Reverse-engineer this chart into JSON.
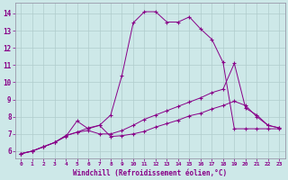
{
  "bg_color": "#cde8e8",
  "line_color": "#880088",
  "xlabel": "Windchill (Refroidissement éolien,°C)",
  "xlim": [
    -0.5,
    23.5
  ],
  "ylim": [
    5.6,
    14.6
  ],
  "yticks": [
    6,
    7,
    8,
    9,
    10,
    11,
    12,
    13,
    14
  ],
  "xticks": [
    0,
    1,
    2,
    3,
    4,
    5,
    6,
    7,
    8,
    9,
    10,
    11,
    12,
    13,
    14,
    15,
    16,
    17,
    18,
    19,
    20,
    21,
    22,
    23
  ],
  "curve_top_x": [
    0,
    1,
    2,
    3,
    4,
    5,
    6,
    7,
    8,
    9,
    10,
    11,
    12,
    13,
    14,
    15,
    16,
    17,
    18,
    19,
    20,
    21,
    22,
    23
  ],
  "curve_top_y": [
    5.85,
    6.0,
    6.25,
    6.5,
    6.9,
    7.1,
    7.35,
    7.5,
    8.1,
    10.4,
    13.45,
    14.1,
    14.1,
    13.5,
    13.5,
    13.8,
    13.1,
    12.5,
    11.15,
    7.3,
    7.3,
    7.3,
    7.3,
    7.3
  ],
  "curve_mid_x": [
    0,
    1,
    2,
    3,
    4,
    5,
    6,
    7,
    8,
    9,
    10,
    11,
    12,
    13,
    14,
    15,
    16,
    17,
    18,
    19,
    20,
    21,
    22,
    23
  ],
  "curve_mid_y": [
    5.85,
    6.0,
    6.25,
    6.5,
    6.9,
    7.1,
    7.2,
    7.0,
    7.0,
    7.2,
    7.5,
    7.85,
    8.1,
    8.35,
    8.6,
    8.85,
    9.1,
    9.4,
    9.6,
    11.1,
    8.5,
    8.1,
    7.5,
    7.35
  ],
  "curve_bot_x": [
    0,
    1,
    2,
    3,
    4,
    5,
    6,
    7,
    8,
    9,
    10,
    11,
    12,
    13,
    14,
    15,
    16,
    17,
    18,
    19,
    20,
    21,
    22,
    23
  ],
  "curve_bot_y": [
    5.85,
    6.0,
    6.25,
    6.5,
    6.85,
    7.75,
    7.3,
    7.5,
    6.85,
    6.9,
    7.0,
    7.15,
    7.4,
    7.6,
    7.8,
    8.05,
    8.2,
    8.45,
    8.65,
    8.9,
    8.65,
    8.0,
    7.5,
    7.35
  ]
}
